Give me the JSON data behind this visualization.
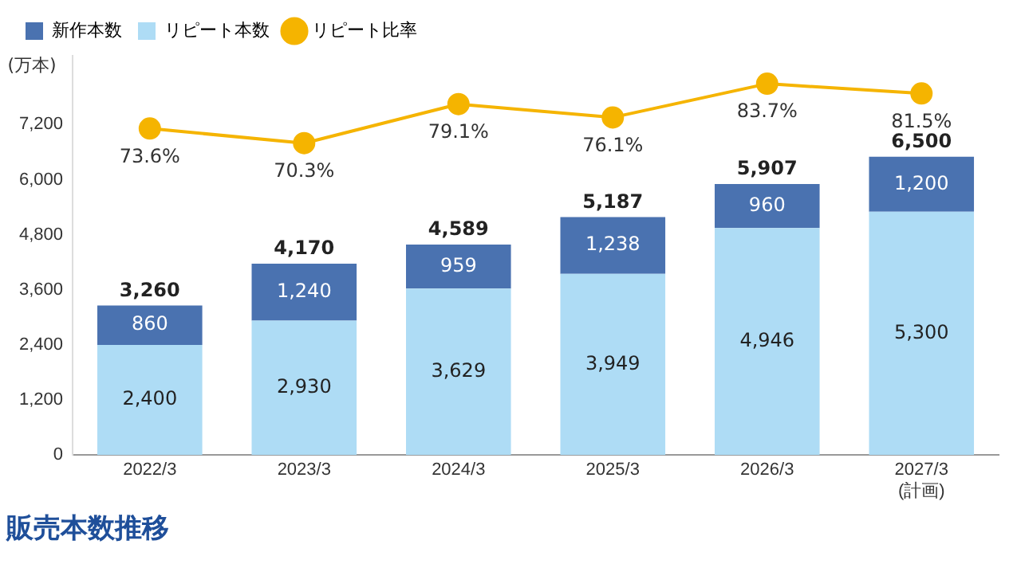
{
  "chart_data": {
    "type": "bar",
    "title": "販売本数推移",
    "ylabel": "(万本)",
    "stacked": true,
    "legend": "top",
    "grid": false,
    "categories": [
      "2022/3",
      "2023/3",
      "2024/3",
      "2025/3",
      "2026/3",
      "2027/3\n(計画)"
    ],
    "series": [
      {
        "name": "リピート本数",
        "color": "#aedcf5",
        "values": [
          2400,
          2930,
          3629,
          3949,
          4946,
          5300
        ],
        "value_labels": [
          "2,400",
          "2,930",
          "3,629",
          "3,949",
          "4,946",
          "5,300"
        ]
      },
      {
        "name": "新作本数",
        "color": "#4a72b0",
        "values": [
          860,
          1240,
          959,
          1238,
          960,
          1200
        ],
        "value_labels": [
          "860",
          "1,240",
          "959",
          "1,238",
          "960",
          "1,200"
        ]
      },
      {
        "name": "リピート比率",
        "type": "line",
        "axis": "y2",
        "color": "#f5b400",
        "marker": "circle",
        "values": [
          73.6,
          70.3,
          79.1,
          76.1,
          83.7,
          81.5
        ],
        "value_labels": [
          "73.6%",
          "70.3%",
          "79.1%",
          "76.1%",
          "83.7%",
          "81.5%"
        ]
      }
    ],
    "totals": [
      "3,260",
      "4,170",
      "4,589",
      "5,187",
      "5,907",
      "6,500"
    ],
    "ylim": [
      0,
      8700
    ],
    "yticks": [
      0,
      {
        "value": 1200,
        "label": "1,200"
      },
      {
        "value": 2400,
        "label": "2,400"
      },
      {
        "value": 3600,
        "label": "3,600"
      },
      {
        "value": 4800,
        "label": "4,800"
      },
      {
        "value": 6000,
        "label": "6,000"
      },
      {
        "value": 7200,
        "label": "7,200"
      }
    ],
    "tick_labels": "xy"
  }
}
